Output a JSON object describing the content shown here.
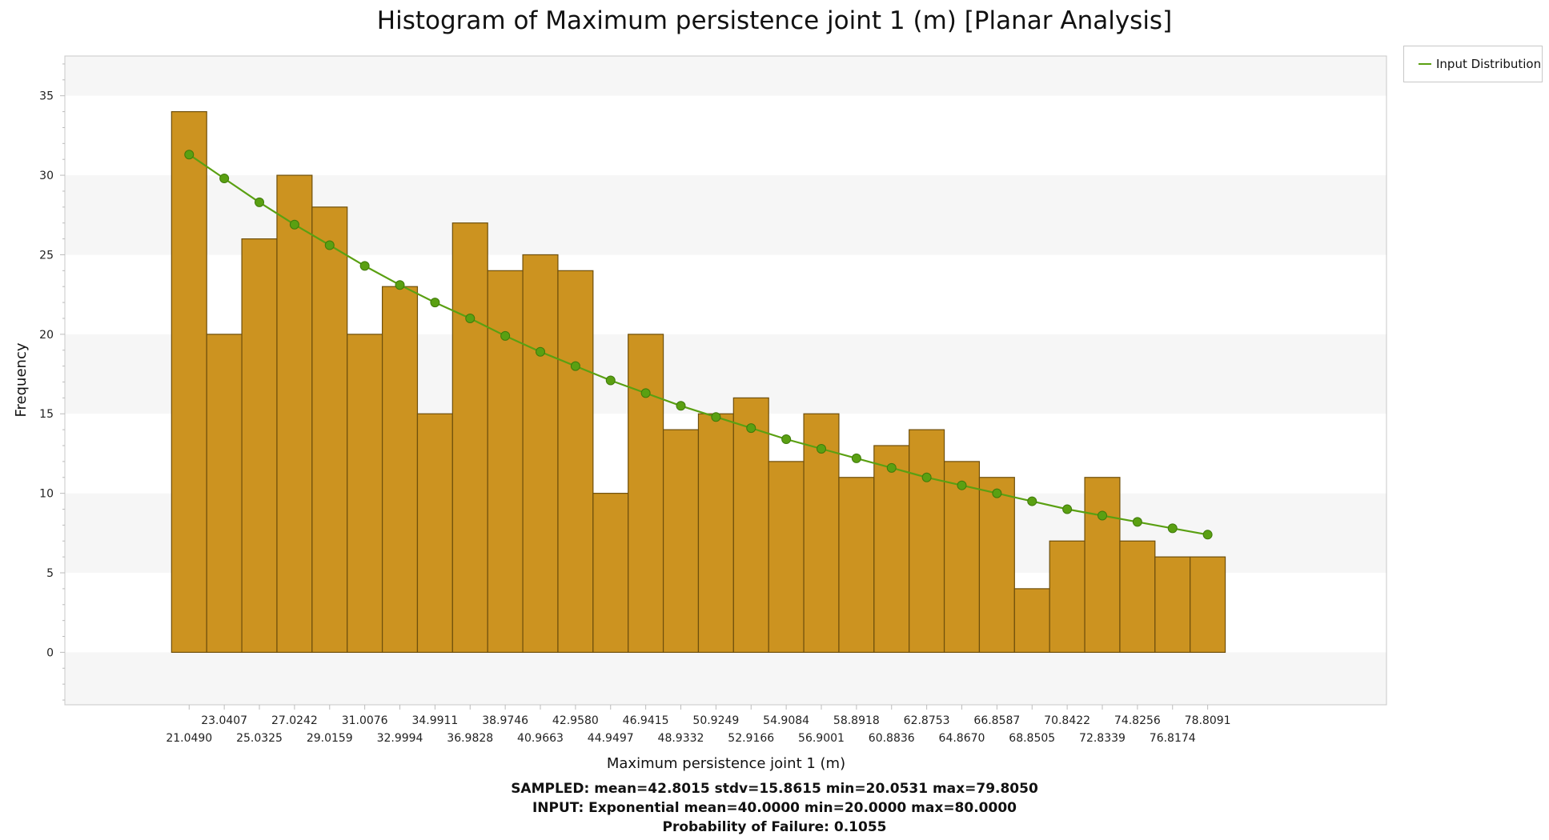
{
  "chart_data": {
    "type": "bar",
    "title": "Histogram of Maximum persistence joint 1 (m) [Planar Analysis]",
    "xlabel": "Maximum persistence joint 1 (m)",
    "ylabel": "Frequency",
    "ylim": [
      -3.3,
      37.5
    ],
    "yticks": [
      0,
      5,
      10,
      15,
      20,
      25,
      30,
      35
    ],
    "grid": "alternating horizontal bands",
    "legend_position": "top-right",
    "bar_color": "#cc9320",
    "bar_edge_color": "#6e4f0c",
    "line_color": "#5aa012",
    "bins": [
      [
        20.0531,
        22.0449
      ],
      [
        22.0449,
        24.0366
      ],
      [
        24.0366,
        26.0284
      ],
      [
        26.0284,
        28.0201
      ],
      [
        28.0201,
        30.0118
      ],
      [
        30.0118,
        32.0035
      ],
      [
        32.0035,
        33.9953
      ],
      [
        33.9953,
        35.987
      ],
      [
        35.987,
        37.9787
      ],
      [
        37.9787,
        39.9705
      ],
      [
        39.9705,
        41.9622
      ],
      [
        41.9622,
        43.9539
      ],
      [
        43.9539,
        45.9456
      ],
      [
        45.9456,
        47.9374
      ],
      [
        47.9374,
        49.9291
      ],
      [
        49.9291,
        51.9208
      ],
      [
        51.9208,
        53.9126
      ],
      [
        53.9126,
        55.9043
      ],
      [
        55.9043,
        57.896
      ],
      [
        57.896,
        59.8877
      ],
      [
        59.8877,
        61.8795
      ],
      [
        61.8795,
        63.8712
      ],
      [
        63.8712,
        65.8629
      ],
      [
        65.8629,
        67.8547
      ],
      [
        67.8547,
        69.8464
      ],
      [
        69.8464,
        71.8381
      ],
      [
        71.8381,
        73.8298
      ],
      [
        73.8298,
        75.8216
      ],
      [
        75.8216,
        77.8133
      ],
      [
        77.8133,
        79.805
      ]
    ],
    "values": [
      34,
      20,
      26,
      30,
      28,
      20,
      23,
      15,
      27,
      24,
      25,
      24,
      10,
      20,
      14,
      15,
      16,
      12,
      15,
      11,
      13,
      14,
      12,
      11,
      4,
      7,
      11,
      7,
      6,
      6
    ],
    "x_tick_labels": [
      "21.0490",
      "23.0407",
      "25.0325",
      "27.0242",
      "29.0159",
      "31.0076",
      "32.9994",
      "34.9911",
      "36.9828",
      "38.9746",
      "40.9663",
      "42.9580",
      "44.9497",
      "46.9415",
      "48.9332",
      "50.9249",
      "52.9166",
      "54.9084",
      "56.9001",
      "58.8918",
      "60.8836",
      "62.8753",
      "64.8670",
      "66.8587",
      "68.8505",
      "70.8422",
      "72.8339",
      "74.8256",
      "76.8174",
      "78.8091"
    ],
    "series": [
      {
        "name": "Input Distribution",
        "type": "line",
        "x": [
          21.049,
          23.0407,
          25.0325,
          27.0242,
          29.0159,
          31.0076,
          32.9994,
          34.9911,
          36.9828,
          38.9746,
          40.9663,
          42.958,
          44.9497,
          46.9415,
          48.9332,
          50.9249,
          52.9166,
          54.9084,
          56.9001,
          58.8918,
          60.8836,
          62.8753,
          64.867,
          66.8587,
          68.8505,
          70.8422,
          72.8339,
          74.8256,
          76.8174,
          78.8091
        ],
        "values": [
          31.3,
          29.8,
          28.3,
          26.9,
          25.6,
          24.3,
          23.1,
          22.0,
          21.0,
          19.9,
          18.9,
          18.0,
          17.1,
          16.3,
          15.5,
          14.8,
          14.1,
          13.4,
          12.8,
          12.2,
          11.6,
          11.0,
          10.5,
          10.0,
          9.5,
          9.0,
          8.6,
          8.2,
          7.8,
          7.4
        ]
      }
    ]
  },
  "stats": {
    "sampled": "SAMPLED: mean=42.8015 stdv=15.8615 min=20.0531 max=79.8050",
    "input": "INPUT: Exponential mean=40.0000 min=20.0000 max=80.0000",
    "pof": "Probability of Failure: 0.1055"
  }
}
